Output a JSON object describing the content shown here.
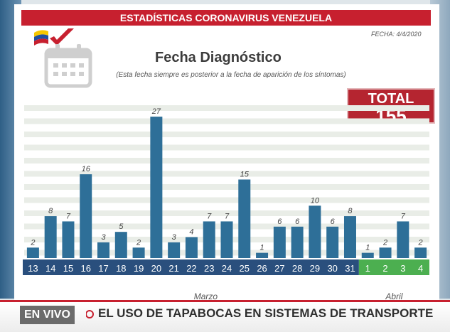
{
  "header": {
    "title": "ESTADÍSTICAS CORONAVIRUS VENEZUELA",
    "fecha": "FECHA: 4/4/2020"
  },
  "icons": {
    "flag": "venezuela-flag-icon",
    "calendar": "calendar-icon"
  },
  "colors": {
    "header_red": "#c7202f",
    "bar_blue": "#2e6f98",
    "march_axis": "#2a4f7d",
    "april_axis": "#4caf50",
    "total_red": "#b52530"
  },
  "total": {
    "label": "TOTAL",
    "value": "155"
  },
  "chart_data": {
    "type": "bar",
    "title": "Fecha Diagnóstico",
    "subtitle": "(Esta fecha siempre es posterior a la fecha de aparición de los síntomas)",
    "categories": [
      "13",
      "14",
      "15",
      "16",
      "17",
      "18",
      "19",
      "20",
      "21",
      "22",
      "23",
      "24",
      "25",
      "26",
      "27",
      "28",
      "29",
      "30",
      "31",
      "1",
      "2",
      "3",
      "4"
    ],
    "values": [
      2,
      8,
      7,
      16,
      3,
      5,
      2,
      27,
      3,
      4,
      7,
      7,
      15,
      1,
      6,
      6,
      10,
      6,
      8,
      1,
      2,
      7,
      2
    ],
    "month_groups": [
      {
        "label": "Marzo",
        "count": 19
      },
      {
        "label": "Abril",
        "count": 4
      }
    ],
    "ylim": [
      0,
      30
    ],
    "grid": true,
    "legend": "none"
  },
  "ticker": {
    "live_label": "EN VIVO",
    "headline": "EL USO DE TAPABOCAS EN SISTEMAS DE TRANSPORTE"
  }
}
